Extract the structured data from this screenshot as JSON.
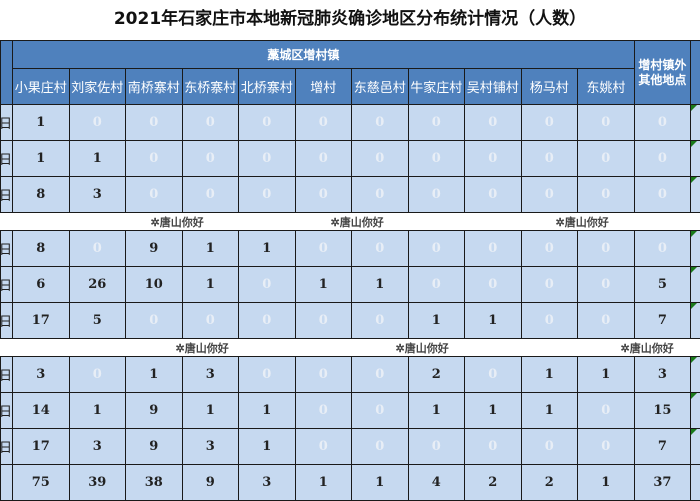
{
  "title": "2021年石家庄市本地新冠肺炎确诊地区分布统计情况（人数）",
  "group_header": "藁城区增村镇",
  "other_header": "增村镇外其他地点",
  "columns": [
    "小果庄村",
    "刘家佐村",
    "南桥寨村",
    "东桥寨村",
    "北桥寨村",
    "增村",
    "东慈邑村",
    "牛家庄村",
    "吴村铺村",
    "杨马村",
    "东姚村"
  ],
  "watermark": "唐山你好",
  "rows": [
    {
      "date": "日",
      "values": [
        1,
        0,
        0,
        0,
        0,
        0,
        0,
        0,
        0,
        0,
        0,
        0
      ]
    },
    {
      "date": "日",
      "values": [
        1,
        1,
        0,
        0,
        0,
        0,
        0,
        0,
        0,
        0,
        0,
        0
      ]
    },
    {
      "date": "日",
      "values": [
        8,
        3,
        0,
        0,
        0,
        0,
        0,
        0,
        0,
        0,
        0,
        0
      ]
    },
    {
      "watermark": true
    },
    {
      "date": "日",
      "values": [
        8,
        0,
        9,
        1,
        1,
        0,
        0,
        0,
        0,
        0,
        0,
        0
      ]
    },
    {
      "date": "日",
      "values": [
        6,
        26,
        10,
        1,
        0,
        1,
        1,
        0,
        0,
        0,
        0,
        5
      ]
    },
    {
      "date": "日",
      "values": [
        17,
        5,
        0,
        0,
        0,
        0,
        0,
        1,
        1,
        0,
        0,
        7
      ]
    },
    {
      "watermark": true
    },
    {
      "date": "日",
      "values": [
        3,
        0,
        1,
        3,
        0,
        0,
        0,
        2,
        0,
        1,
        1,
        3
      ]
    },
    {
      "date": "日",
      "values": [
        14,
        1,
        9,
        1,
        1,
        0,
        0,
        1,
        1,
        1,
        0,
        15
      ]
    },
    {
      "date": "日",
      "values": [
        17,
        3,
        9,
        3,
        1,
        0,
        0,
        0,
        0,
        0,
        0,
        7
      ]
    },
    {
      "date": "",
      "values": [
        75,
        39,
        38,
        9,
        3,
        1,
        1,
        4,
        2,
        2,
        1,
        37
      ]
    }
  ],
  "colors": {
    "header": "#4f81bd",
    "cell": "#c6d9f0",
    "zero": "#e8eef6"
  }
}
